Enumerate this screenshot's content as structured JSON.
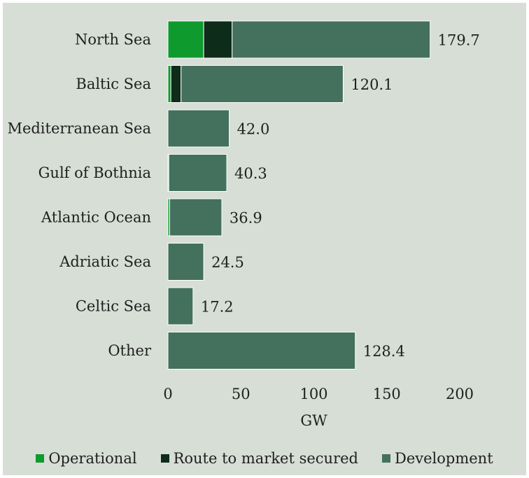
{
  "chart_data": {
    "type": "bar",
    "orientation": "horizontal",
    "stacked": true,
    "title": "",
    "xlabel": "GW",
    "ylabel": "",
    "xlim": [
      0,
      200
    ],
    "xticks": [
      0,
      50,
      100,
      150,
      200
    ],
    "grid": false,
    "legend_position": "bottom",
    "categories": [
      "North Sea",
      "Baltic Sea",
      "Mediterranean Sea",
      "Gulf of Bothnia",
      "Atlantic Ocean",
      "Adriatic Sea",
      "Celtic Sea",
      "Other"
    ],
    "totals": [
      "179.7",
      "120.1",
      "42.0",
      "40.3",
      "36.9",
      "24.5",
      "17.2",
      "128.4"
    ],
    "series": [
      {
        "name": "Operational",
        "color": "#0e9a2d",
        "values": [
          24.5,
          2.0,
          0,
          0.6,
          1.2,
          0,
          0,
          0
        ]
      },
      {
        "name": "Route to market secured",
        "color": "#0d2c1a",
        "values": [
          19.5,
          7.0,
          0,
          0,
          0,
          0,
          0,
          0
        ]
      },
      {
        "name": "Development",
        "color": "#44705e",
        "values": [
          135.7,
          111.1,
          42.0,
          39.7,
          35.7,
          24.5,
          17.2,
          128.4
        ]
      }
    ]
  }
}
